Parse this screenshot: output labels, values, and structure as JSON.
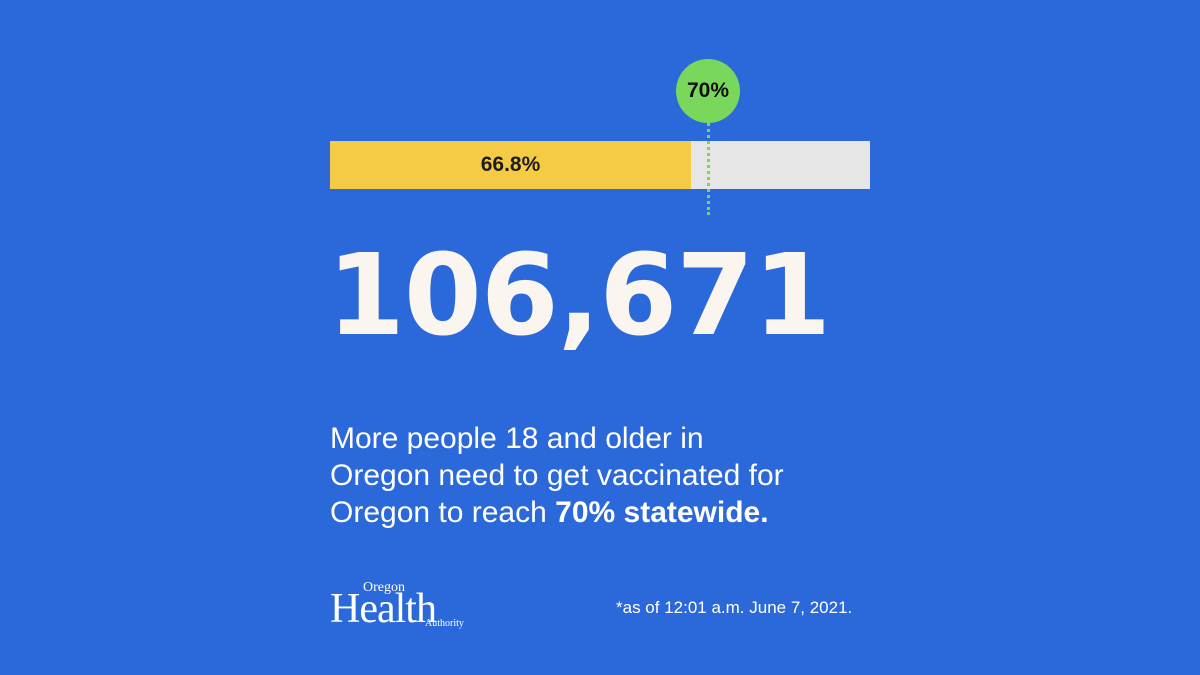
{
  "progress": {
    "current_percent": 66.8,
    "current_label": "66.8%",
    "target_percent": 70,
    "target_label": "70%"
  },
  "headline": {
    "number": "106,671"
  },
  "message": {
    "line1": "More people 18 and older in",
    "line2": "Oregon need to get vaccinated for",
    "line3_prefix": "Oregon to reach ",
    "line3_strong": "70% statewide."
  },
  "logo": {
    "top": "Oregon",
    "main": "Health",
    "bottom": "Authority"
  },
  "footnote": "*as of 12:01 a.m. June 7, 2021.",
  "colors": {
    "background": "#2b68d9",
    "progress_fill": "#f5cb46",
    "progress_track": "#e6e6e6",
    "target": "#79d85b",
    "headline": "#fbf5ef"
  }
}
